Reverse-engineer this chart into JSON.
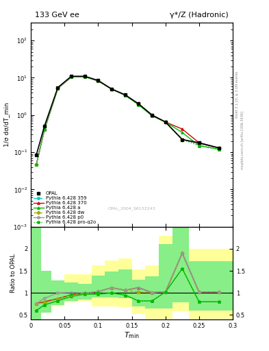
{
  "title_left": "133 GeV ee",
  "title_right": "γ*/Z (Hadronic)",
  "xlabel": "T_min",
  "ylabel_main": "1/σ dσ/dT_min",
  "ylabel_ratio": "Ratio to OPAL",
  "right_label_top": "Rivet 3.1.10, ≥ 3.1M events",
  "right_label_bottom": "mcplots.cern.ch [arXiv:1306.3436]",
  "watermark": "OPAL_2004_S6132243",
  "xvals": [
    0.008,
    0.02,
    0.04,
    0.06,
    0.08,
    0.1,
    0.12,
    0.14,
    0.16,
    0.18,
    0.2,
    0.225,
    0.25,
    0.28
  ],
  "opal_y": [
    0.085,
    0.5,
    5.5,
    11.0,
    11.0,
    8.5,
    5.0,
    3.5,
    2.0,
    1.0,
    0.65,
    0.22,
    0.18,
    0.13
  ],
  "py359_y": [
    0.047,
    0.4,
    5.2,
    10.5,
    10.8,
    8.2,
    5.0,
    3.4,
    2.0,
    1.0,
    0.65,
    0.22,
    0.17,
    0.13
  ],
  "py370_y": [
    0.047,
    0.4,
    5.2,
    10.5,
    10.8,
    8.2,
    5.0,
    3.4,
    2.0,
    1.0,
    0.65,
    0.42,
    0.18,
    0.13
  ],
  "pya_y": [
    0.047,
    0.4,
    5.2,
    10.5,
    10.8,
    8.2,
    5.0,
    3.4,
    1.9,
    0.95,
    0.65,
    0.34,
    0.15,
    0.12
  ],
  "pydw_y": [
    0.047,
    0.4,
    5.2,
    10.5,
    10.8,
    8.2,
    5.0,
    3.4,
    2.0,
    1.0,
    0.65,
    0.22,
    0.17,
    0.13
  ],
  "pyp0_y": [
    0.047,
    0.4,
    5.2,
    10.5,
    10.8,
    8.2,
    5.0,
    3.4,
    2.0,
    1.0,
    0.65,
    0.22,
    0.17,
    0.13
  ],
  "pyproq2o_y": [
    0.047,
    0.4,
    5.2,
    10.5,
    10.8,
    8.2,
    5.0,
    3.4,
    1.9,
    0.95,
    0.65,
    0.22,
    0.15,
    0.12
  ],
  "ratio_py359": [
    0.76,
    0.78,
    0.87,
    0.96,
    0.99,
    1.03,
    1.12,
    1.06,
    1.12,
    1.01,
    1.02,
    1.9,
    1.02,
    1.02
  ],
  "ratio_py370": [
    0.76,
    0.8,
    0.87,
    0.96,
    0.99,
    1.03,
    1.12,
    1.06,
    1.12,
    1.01,
    1.02,
    1.9,
    1.02,
    1.02
  ],
  "ratio_pya": [
    0.6,
    0.73,
    0.82,
    0.92,
    0.97,
    0.97,
    1.0,
    0.95,
    0.82,
    0.82,
    1.02,
    1.55,
    0.8,
    0.8
  ],
  "ratio_pydw": [
    0.76,
    0.78,
    0.87,
    0.96,
    0.99,
    1.03,
    1.12,
    1.06,
    1.02,
    1.01,
    1.02,
    1.9,
    1.02,
    1.02
  ],
  "ratio_pyp0": [
    0.76,
    0.88,
    1.0,
    1.01,
    1.0,
    1.03,
    1.12,
    1.06,
    1.12,
    1.01,
    1.02,
    1.9,
    1.02,
    1.02
  ],
  "ratio_pyproq2o": [
    0.6,
    0.73,
    0.82,
    0.97,
    0.99,
    1.0,
    1.0,
    0.95,
    0.82,
    0.82,
    1.02,
    1.55,
    0.8,
    0.8
  ],
  "xbins": [
    0.0,
    0.015,
    0.03,
    0.05,
    0.07,
    0.09,
    0.11,
    0.13,
    0.15,
    0.17,
    0.19,
    0.21,
    0.235,
    0.265,
    0.3
  ],
  "green_band_lo": [
    0.4,
    0.55,
    0.72,
    0.82,
    0.85,
    0.9,
    0.9,
    0.88,
    0.7,
    0.65,
    0.65,
    0.78,
    0.6,
    0.6
  ],
  "green_band_hi": [
    2.5,
    1.5,
    1.28,
    1.24,
    1.2,
    1.4,
    1.48,
    1.53,
    1.3,
    1.38,
    2.1,
    2.5,
    1.72,
    1.72
  ],
  "yellow_band_lo": [
    0.4,
    0.55,
    0.7,
    0.78,
    0.82,
    0.7,
    0.7,
    0.68,
    0.52,
    0.42,
    0.42,
    0.58,
    0.42,
    0.42
  ],
  "yellow_band_hi": [
    2.5,
    1.5,
    1.28,
    1.43,
    1.43,
    1.63,
    1.73,
    1.78,
    1.53,
    1.63,
    2.3,
    2.8,
    2.0,
    2.0
  ],
  "color_359": "#00cccc",
  "color_370": "#cc0000",
  "color_a": "#00bb00",
  "color_dw": "#aaaa00",
  "color_p0": "#999999",
  "color_proq2o": "#00bb00",
  "ylim_main": [
    0.001,
    300
  ],
  "ylim_ratio": [
    0.4,
    2.5
  ],
  "xlim": [
    0.0,
    0.3
  ]
}
